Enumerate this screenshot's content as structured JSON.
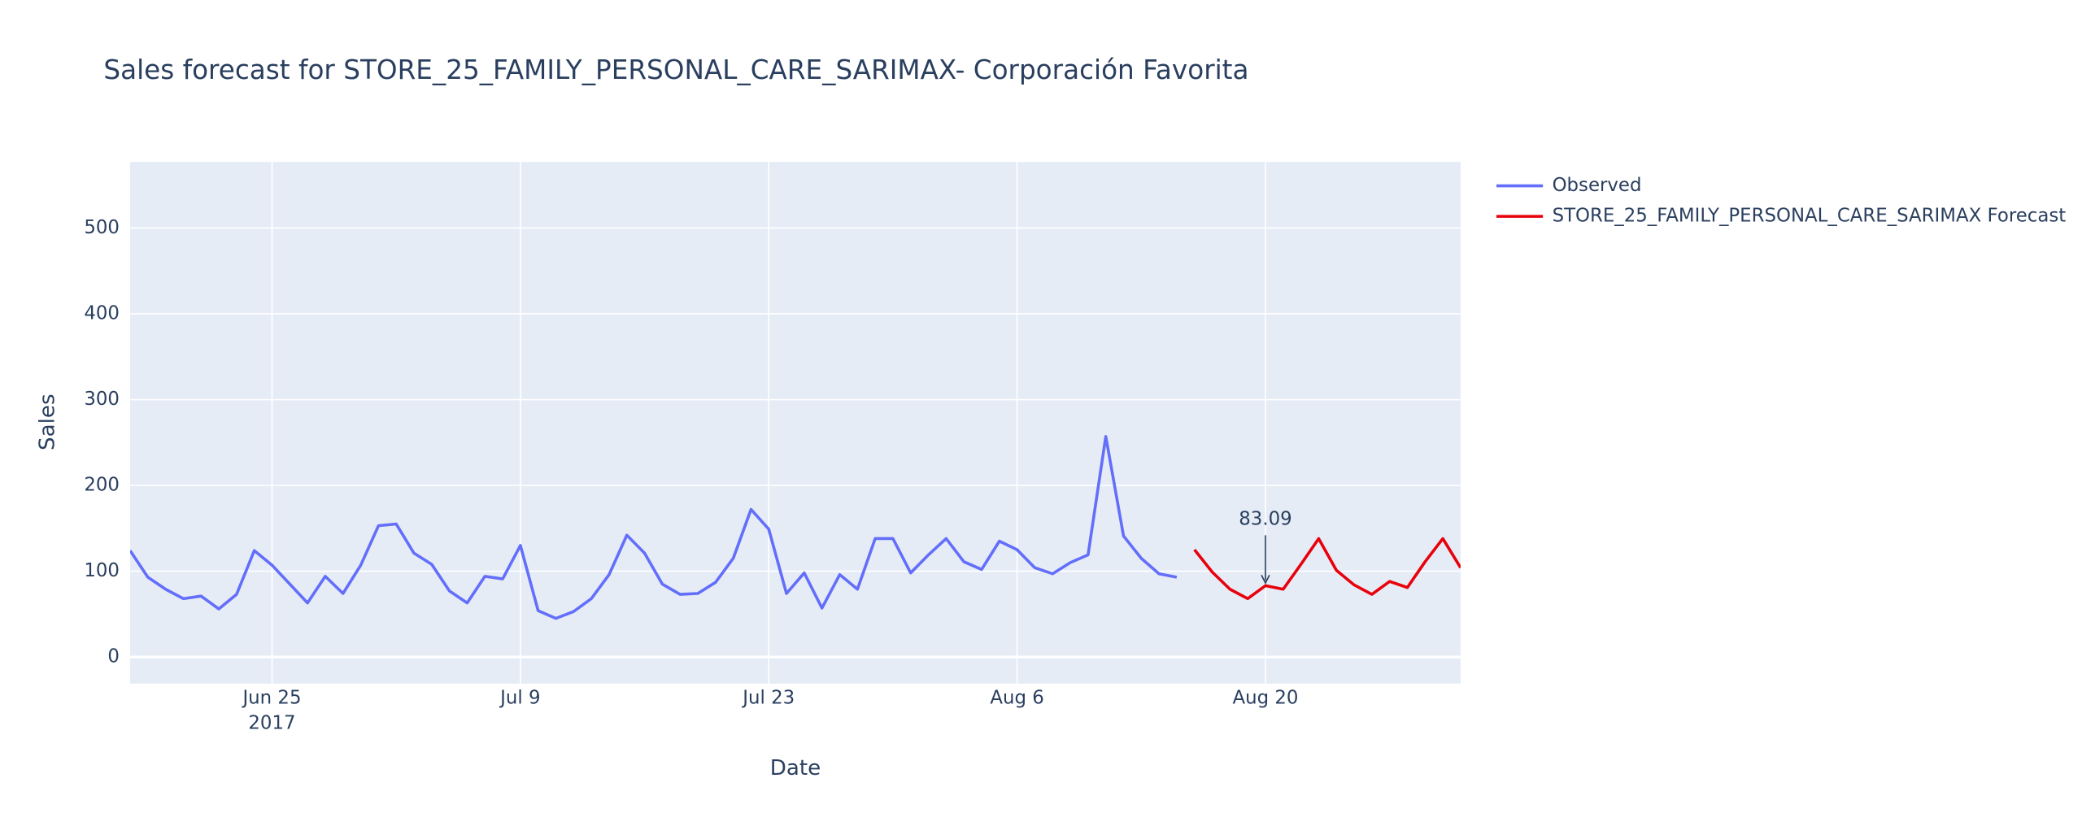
{
  "chart_data": {
    "type": "line",
    "title": "Sales forecast for STORE_25_FAMILY_PERSONAL_CARE_SARIMAX- Corporación Favorita",
    "x_label": "Date",
    "y_label": "Sales",
    "xlim": [
      "2017-06-17",
      "2017-08-31"
    ],
    "xticks": [
      {
        "value": "2017-06-25",
        "label": "Jun 25\n2017"
      },
      {
        "value": "2017-07-09",
        "label": "Jul 9"
      },
      {
        "value": "2017-07-23",
        "label": "Jul 23"
      },
      {
        "value": "2017-08-06",
        "label": "Aug 6"
      },
      {
        "value": "2017-08-20",
        "label": "Aug 20"
      }
    ],
    "ylim": [
      -31,
      577
    ],
    "yticks": [
      0,
      100,
      200,
      300,
      400,
      500
    ],
    "grid": true,
    "legend": "top-right",
    "series": [
      {
        "name": "Observed",
        "color": "#636efa",
        "x": [
          "2017-06-17",
          "2017-06-18",
          "2017-06-19",
          "2017-06-20",
          "2017-06-21",
          "2017-06-22",
          "2017-06-23",
          "2017-06-24",
          "2017-06-25",
          "2017-06-26",
          "2017-06-27",
          "2017-06-28",
          "2017-06-29",
          "2017-06-30",
          "2017-07-01",
          "2017-07-02",
          "2017-07-03",
          "2017-07-04",
          "2017-07-05",
          "2017-07-06",
          "2017-07-07",
          "2017-07-08",
          "2017-07-09",
          "2017-07-10",
          "2017-07-11",
          "2017-07-12",
          "2017-07-13",
          "2017-07-14",
          "2017-07-15",
          "2017-07-16",
          "2017-07-17",
          "2017-07-18",
          "2017-07-19",
          "2017-07-20",
          "2017-07-21",
          "2017-07-22",
          "2017-07-23",
          "2017-07-24",
          "2017-07-25",
          "2017-07-26",
          "2017-07-27",
          "2017-07-28",
          "2017-07-29",
          "2017-07-30",
          "2017-07-31",
          "2017-08-01",
          "2017-08-02",
          "2017-08-03",
          "2017-08-04",
          "2017-08-05",
          "2017-08-06",
          "2017-08-07",
          "2017-08-08",
          "2017-08-09",
          "2017-08-10",
          "2017-08-11",
          "2017-08-12",
          "2017-08-13",
          "2017-08-14",
          "2017-08-15"
        ],
        "values": [
          124,
          93,
          79,
          68,
          71,
          56,
          73,
          124,
          107,
          85,
          63,
          94,
          74,
          107,
          153,
          155,
          121,
          108,
          77,
          63,
          94,
          91,
          130,
          54,
          45,
          53,
          68,
          96,
          142,
          121,
          85,
          73,
          74,
          87,
          115,
          172,
          149,
          74,
          98,
          57,
          96,
          79,
          138,
          138,
          98,
          119,
          138,
          111,
          102,
          135,
          125,
          104,
          97,
          110,
          119,
          257,
          141,
          115,
          97,
          93
        ]
      },
      {
        "name": "STORE_25_FAMILY_PERSONAL_CARE_SARIMAX Forecast",
        "color": "#e8000b",
        "x": [
          "2017-08-16",
          "2017-08-17",
          "2017-08-18",
          "2017-08-19",
          "2017-08-20",
          "2017-08-21",
          "2017-08-22",
          "2017-08-23",
          "2017-08-24",
          "2017-08-25",
          "2017-08-26",
          "2017-08-27",
          "2017-08-28",
          "2017-08-29",
          "2017-08-30",
          "2017-08-31"
        ],
        "values": [
          125,
          99,
          79,
          68,
          83.09,
          79,
          108,
          138,
          101,
          84,
          73,
          88,
          81,
          111,
          138,
          104
        ]
      }
    ],
    "annotations": [
      {
        "text": "83.09",
        "x": "2017-08-20",
        "y": 83.09
      }
    ]
  }
}
